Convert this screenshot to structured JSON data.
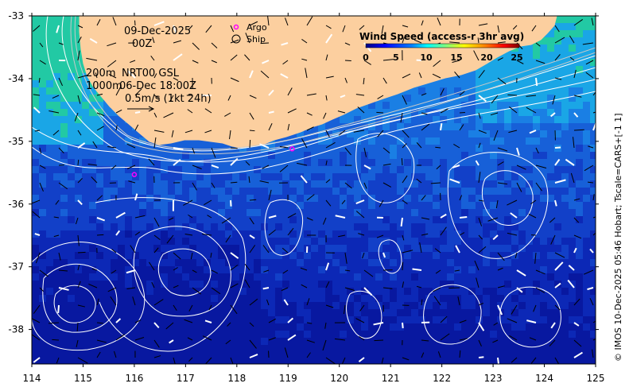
{
  "header": {
    "date": "09-Dec-2025",
    "time": "00Z",
    "depth_label_1": "200m",
    "depth_label_2": "1000m",
    "product": "NRT00 GSL",
    "product_time": "06-Dec 18:00Z",
    "scale": "0.5m/s (1kt 24h)"
  },
  "key": {
    "argo": "Argo",
    "ship": "Ship",
    "argo_color": "#ff00ff",
    "ship_color": "#000000"
  },
  "legend": {
    "title": "Wind Speed (access-r 3hr avg)",
    "ticks": [
      "0",
      "5",
      "10",
      "15",
      "20",
      "25"
    ],
    "colors": [
      "#00007f",
      "#0000ff",
      "#007fff",
      "#00ffff",
      "#7fff7f",
      "#ffff00",
      "#ff7f00",
      "#ff0000",
      "#7f0000"
    ]
  },
  "axes": {
    "x_ticks": [
      "114",
      "115",
      "116",
      "117",
      "118",
      "119",
      "120",
      "121",
      "122",
      "123",
      "124",
      "125"
    ],
    "y_ticks": [
      "-33",
      "-34",
      "-35",
      "-36",
      "-37",
      "-38"
    ],
    "x_range": [
      114,
      125
    ],
    "y_range": [
      -38.55,
      -33
    ]
  },
  "credit": "© IMOS 10-Dec-2025 05:46 Hobart; Tscale=CARS+[-1 1]",
  "argo_floats": [
    {
      "lon": 116.0,
      "lat": -35.53
    },
    {
      "lon": 119.08,
      "lat": -35.12
    }
  ],
  "colors": {
    "land": "#fccf9f",
    "contour": "#ffffff",
    "ocean_deep": "#0a1fb4",
    "ocean_mid": "#1a6ee0",
    "ocean_shelf": "#2da0e8",
    "ocean_green": "#20c8a0"
  }
}
